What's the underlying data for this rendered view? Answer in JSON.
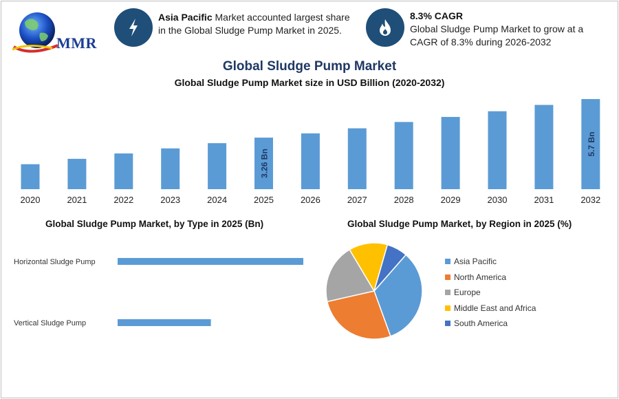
{
  "header": {
    "logo_text": "MMR",
    "info1": {
      "bold": "Asia Pacific",
      "text": " Market accounted largest share in the Global Sludge Pump Market in 2025."
    },
    "info2": {
      "bold": "8.3% CAGR",
      "text": "Global Sludge Pump Market to grow at a CAGR of 8.3% during 2026-2032"
    },
    "icons": [
      "lightning-icon",
      "flame-icon"
    ],
    "icon_color": "#1f4e79"
  },
  "title": "Global Sludge Pump Market",
  "chart_data": [
    {
      "type": "bar",
      "title": "Global Sludge Pump Market size in USD Billion (2020-2032)",
      "categories": [
        "2020",
        "2021",
        "2022",
        "2023",
        "2024",
        "2025",
        "2026",
        "2027",
        "2028",
        "2029",
        "2030",
        "2031",
        "2032"
      ],
      "values": [
        1.58,
        1.92,
        2.26,
        2.58,
        2.91,
        3.26,
        3.53,
        3.85,
        4.25,
        4.57,
        4.93,
        5.33,
        5.7
      ],
      "data_labels": {
        "5": "3.26 Bn",
        "12": "5.7 Bn"
      },
      "ylim": [
        0,
        5.7
      ],
      "color": "#5b9bd5"
    },
    {
      "type": "bar",
      "orientation": "horizontal",
      "title": "Global Sludge Pump Market, by Type in 2025 (Bn)",
      "categories": [
        "Horizontal Sludge Pump",
        "Vertical Sludge Pump"
      ],
      "values": [
        2.17,
        1.09
      ],
      "color": "#5b9bd5"
    },
    {
      "type": "pie",
      "title": "Global Sludge Pump Market, by Region in 2025 (%)",
      "categories": [
        "Asia Pacific",
        "North America",
        "Europe",
        "Middle East and Africa",
        "South America"
      ],
      "values": [
        33,
        27,
        20,
        13,
        7
      ],
      "colors": [
        "#5b9bd5",
        "#ed7d31",
        "#a5a5a5",
        "#ffc000",
        "#4472c4"
      ],
      "legend_position": "right"
    }
  ]
}
